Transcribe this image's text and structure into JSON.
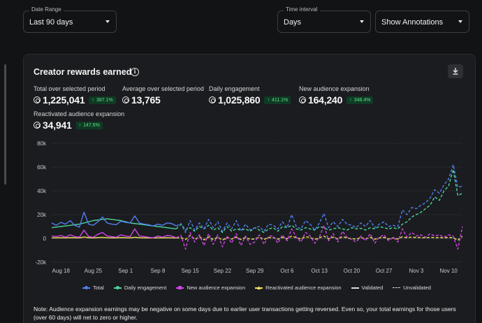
{
  "filters": {
    "date_range": {
      "label": "Date Range",
      "value": "Last 90 days"
    },
    "time_interval": {
      "label": "Time interval",
      "value": "Days"
    },
    "annotations": {
      "value": "Show Annotations"
    }
  },
  "card": {
    "title": "Creator rewards earned",
    "info_icon": "info-icon",
    "download_icon": "download-icon"
  },
  "metrics": [
    {
      "label": "Total over selected period",
      "value": "1,225,041",
      "badge": "387.1%"
    },
    {
      "label": "Average over selected period",
      "value": "13,765",
      "badge": ""
    },
    {
      "label": "Daily engagement",
      "value": "1,025,860",
      "badge": "411.1%"
    },
    {
      "label": "New audience expansion",
      "value": "164,240",
      "badge": "348.4%"
    },
    {
      "label": "Reactivated audience expansion",
      "value": "34,941",
      "badge": "147.6%"
    }
  ],
  "colors": {
    "total": "#4f7ff0",
    "daily_engagement": "#4ad49a",
    "new_audience": "#d246e8",
    "reactivated": "#f0de58",
    "badge_text": "#5ce08a",
    "badge_bg": "#0f3a24"
  },
  "legend": [
    "Total",
    "Daily engagement",
    "New audience expansion",
    "Reactivated audience expansion",
    "Validated",
    "Unvalidated"
  ],
  "note": "Note: Audience expansion earnings may be negative on some days due to earlier user transactions getting reversed. Even so, your total earnings for those users (over 60 days) will net to zero or higher.",
  "chart_data": {
    "type": "line",
    "x_tick_labels": [
      "Aug 18",
      "Aug 25",
      "Sep 1",
      "Sep 8",
      "Sep 15",
      "Sep 22",
      "Sep 29",
      "Oct 6",
      "Oct 13",
      "Oct 20",
      "Oct 27",
      "Nov 3",
      "Nov 10"
    ],
    "y_tick_labels": [
      "80k",
      "60k",
      "40k",
      "20k",
      "0",
      "-20k"
    ],
    "ylim": [
      -20000,
      80000
    ],
    "grid": true,
    "validated_until_day": 28,
    "x": [
      1,
      2,
      3,
      4,
      5,
      6,
      7,
      8,
      9,
      10,
      11,
      12,
      13,
      14,
      15,
      16,
      17,
      18,
      19,
      20,
      21,
      22,
      23,
      24,
      25,
      26,
      27,
      28,
      29,
      30,
      31,
      32,
      33,
      34,
      35,
      36,
      37,
      38,
      39,
      40,
      41,
      42,
      43,
      44,
      45,
      46,
      47,
      48,
      49,
      50,
      51,
      52,
      53,
      54,
      55,
      56,
      57,
      58,
      59,
      60,
      61,
      62,
      63,
      64,
      65,
      66,
      67,
      68,
      69,
      70,
      71,
      72,
      73,
      74,
      75,
      76,
      77,
      78,
      79,
      80,
      81,
      82,
      83,
      84,
      85,
      86,
      87,
      88,
      89,
      90
    ],
    "series": [
      {
        "name": "Total",
        "values": [
          13000,
          11000,
          13500,
          12000,
          15000,
          11000,
          9500,
          22000,
          12000,
          11000,
          14000,
          18000,
          13000,
          12000,
          11500,
          14500,
          13500,
          13000,
          19000,
          13000,
          12000,
          11500,
          10500,
          12000,
          11000,
          13000,
          12500,
          10500,
          12500,
          5000,
          15000,
          7000,
          13000,
          8000,
          16000,
          9000,
          14000,
          6000,
          13000,
          8000,
          15000,
          6000,
          12000,
          7000,
          9000,
          10000,
          6000,
          12000,
          11000,
          8000,
          14000,
          9000,
          20000,
          10000,
          8000,
          15000,
          12000,
          7000,
          13000,
          21000,
          9000,
          14000,
          10000,
          16000,
          12000,
          11000,
          9000,
          13000,
          10000,
          15000,
          9000,
          12000,
          14000,
          10000,
          11000,
          10000,
          24000,
          20000,
          26000,
          25000,
          28000,
          30000,
          34000,
          41000,
          38000,
          45000,
          50000,
          62000,
          43000,
          44000
        ]
      },
      {
        "name": "Daily engagement",
        "values": [
          9000,
          9500,
          10000,
          10500,
          11000,
          11500,
          12000,
          13000,
          14000,
          15000,
          15500,
          16000,
          16500,
          16000,
          15500,
          15000,
          14000,
          13000,
          12500,
          12000,
          11500,
          11000,
          10500,
          10000,
          9500,
          9000,
          8500,
          8000,
          12000,
          7000,
          9000,
          6000,
          10000,
          8000,
          11000,
          7000,
          9000,
          5000,
          10000,
          6000,
          8000,
          7000,
          8000,
          6000,
          9000,
          7000,
          5000,
          8000,
          9000,
          6000,
          10000,
          9000,
          11000,
          8000,
          7000,
          9000,
          8000,
          7000,
          10000,
          9000,
          7000,
          8000,
          9000,
          8000,
          7000,
          9000,
          8000,
          8500,
          7000,
          9000,
          8000,
          10000,
          9000,
          8000,
          9000,
          8000,
          12000,
          14000,
          18000,
          20000,
          22000,
          25000,
          28000,
          35000,
          32000,
          40000,
          44000,
          58000,
          36000,
          38000
        ]
      },
      {
        "name": "New audience expansion",
        "values": [
          2000,
          1500,
          2500,
          1000,
          3000,
          1500,
          1000,
          7000,
          1500,
          1000,
          3500,
          5000,
          2000,
          1500,
          1000,
          3000,
          2000,
          1500,
          8000,
          2000,
          1500,
          1000,
          500,
          2000,
          1000,
          2500,
          2000,
          500,
          2500,
          -9000,
          5000,
          -3000,
          3000,
          -6000,
          4000,
          -5000,
          3000,
          -7000,
          2000,
          -4000,
          4000,
          -6000,
          2000,
          -5000,
          -3000,
          3000,
          -5000,
          2000,
          2000,
          -4000,
          3000,
          -2000,
          8000,
          1000,
          -3000,
          5000,
          2000,
          -4000,
          1000,
          11000,
          -2000,
          4000,
          -3000,
          6000,
          1000,
          -1000,
          -3000,
          2000,
          -2000,
          4000,
          -4000,
          1000,
          3000,
          -2000,
          1000,
          -3000,
          8000,
          1000,
          5000,
          2000,
          3000,
          1000,
          4000,
          2000,
          3000,
          1000,
          3000,
          2000,
          -9000,
          10000
        ]
      },
      {
        "name": "Reactivated audience expansion",
        "values": [
          500,
          500,
          600,
          500,
          700,
          600,
          500,
          1200,
          600,
          500,
          800,
          900,
          600,
          500,
          500,
          800,
          600,
          500,
          1000,
          600,
          500,
          500,
          400,
          500,
          500,
          600,
          500,
          400,
          600,
          -1000,
          2500,
          -800,
          1500,
          -1200,
          1200,
          -900,
          1000,
          -1500,
          800,
          -600,
          1200,
          -1000,
          800,
          -800,
          -500,
          1200,
          -900,
          700,
          800,
          -700,
          1000,
          -400,
          2000,
          600,
          -500,
          1500,
          700,
          -800,
          500,
          2000,
          -400,
          1200,
          -600,
          1500,
          500,
          -300,
          -600,
          800,
          -400,
          1000,
          -700,
          500,
          900,
          -500,
          500,
          -600,
          1500,
          500,
          1200,
          700,
          900,
          500,
          1000,
          700,
          800,
          500,
          900,
          600,
          -1500,
          1800
        ]
      }
    ],
    "legend_entries": [
      "Total",
      "Daily engagement",
      "New audience expansion",
      "Reactivated audience expansion",
      "Validated",
      "Unvalidated"
    ]
  }
}
